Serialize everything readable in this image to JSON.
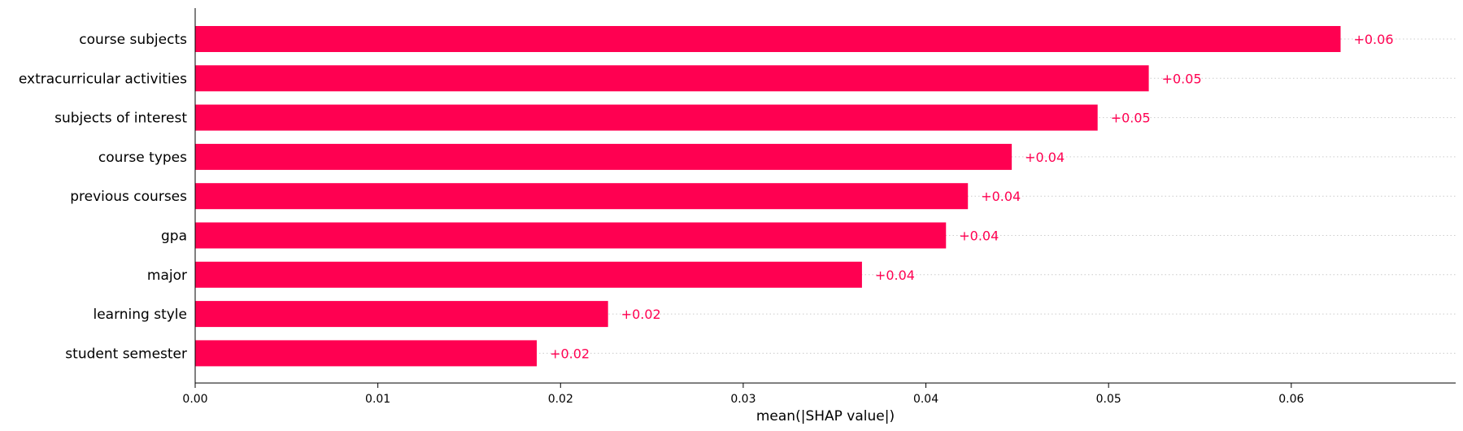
{
  "chart_data": {
    "type": "bar",
    "orientation": "horizontal",
    "categories": [
      "course subjects",
      "extracurricular activities",
      "subjects of interest",
      "course types",
      "previous courses",
      "gpa",
      "major",
      "learning style",
      "student semester"
    ],
    "values": [
      0.0627,
      0.0522,
      0.0494,
      0.0447,
      0.0423,
      0.0411,
      0.0365,
      0.0226,
      0.0187
    ],
    "value_labels": [
      "+0.06",
      "+0.05",
      "+0.05",
      "+0.04",
      "+0.04",
      "+0.04",
      "+0.04",
      "+0.02",
      "+0.02"
    ],
    "xlabel": "mean(|SHAP value|)",
    "ylabel": "",
    "title": "",
    "xlim": [
      0,
      0.069
    ],
    "xticks": [
      0.0,
      0.01,
      0.02,
      0.03,
      0.04,
      0.05,
      0.06
    ],
    "xtick_labels": [
      "0.00",
      "0.01",
      "0.02",
      "0.03",
      "0.04",
      "0.05",
      "0.06"
    ],
    "grid": "dotted horizontal guide lines per bar",
    "legend": "none",
    "colors": {
      "bar": "#ff0051",
      "value_label": "#ff0051",
      "axis": "#000000",
      "guide": "#cccccc"
    }
  }
}
